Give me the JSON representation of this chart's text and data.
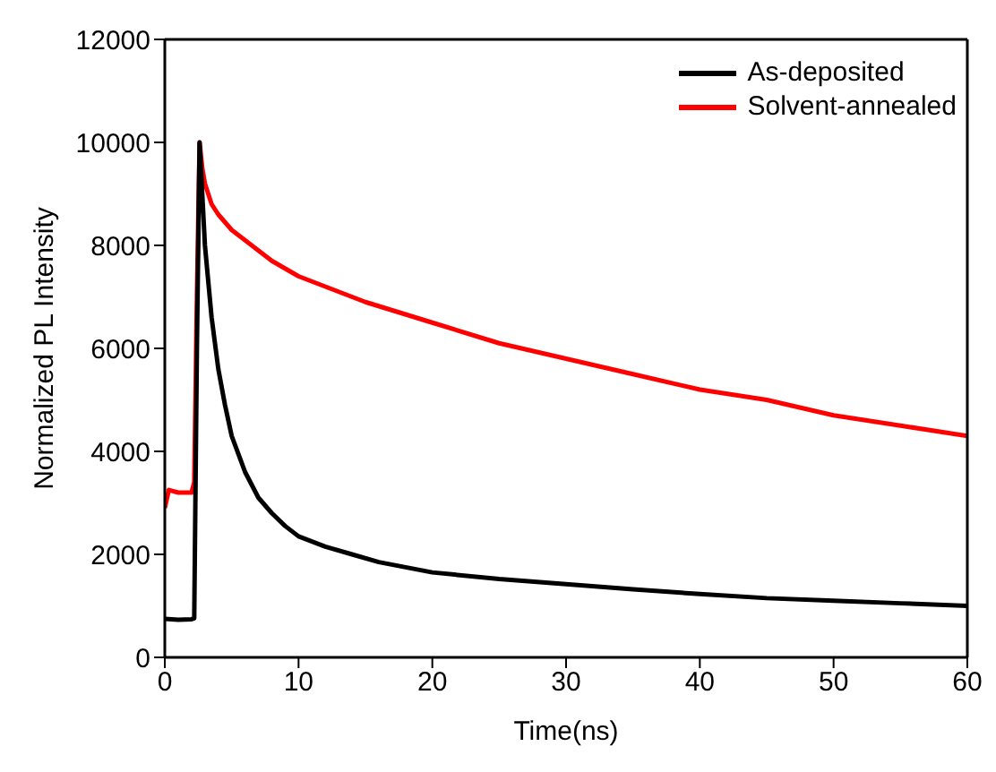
{
  "chart_data": {
    "type": "line",
    "xlabel": "Time(ns)",
    "ylabel": "Normalized PL Intensity",
    "xlim": [
      0,
      60
    ],
    "xticks": [
      0,
      10,
      20,
      30,
      40,
      50,
      60
    ],
    "ylim": [
      0,
      12000
    ],
    "yticks": [
      0,
      2000,
      4000,
      6000,
      8000,
      10000,
      12000
    ],
    "legend": "top right",
    "grid": false,
    "marker": "none",
    "line_style": "solid",
    "series": [
      {
        "name": "As-deposited",
        "color": "#000000",
        "x": [
          0,
          1,
          2,
          2.2,
          2.4,
          2.6,
          2.8,
          3,
          3.5,
          4,
          4.5,
          5,
          6,
          7,
          8,
          9,
          10,
          12,
          14,
          16,
          18,
          20,
          25,
          30,
          35,
          40,
          45,
          50,
          55,
          60
        ],
        "values": [
          750,
          730,
          740,
          760,
          6000,
          10000,
          9000,
          8000,
          6600,
          5600,
          4900,
          4300,
          3600,
          3100,
          2800,
          2550,
          2350,
          2150,
          2000,
          1850,
          1750,
          1650,
          1520,
          1420,
          1320,
          1230,
          1150,
          1100,
          1050,
          1000
        ]
      },
      {
        "name": "Solvent-annealed",
        "color": "#ff0000",
        "x": [
          0,
          0.3,
          1,
          2,
          2.2,
          2.4,
          2.6,
          2.8,
          3,
          3.5,
          4,
          5,
          6,
          7,
          8,
          10,
          12,
          15,
          20,
          25,
          30,
          35,
          40,
          45,
          50,
          55,
          60
        ],
        "values": [
          2900,
          3250,
          3200,
          3200,
          3400,
          7000,
          10000,
          9500,
          9200,
          8800,
          8600,
          8300,
          8100,
          7900,
          7700,
          7400,
          7200,
          6900,
          6500,
          6100,
          5800,
          5500,
          5200,
          5000,
          4700,
          4500,
          4300
        ]
      }
    ]
  }
}
